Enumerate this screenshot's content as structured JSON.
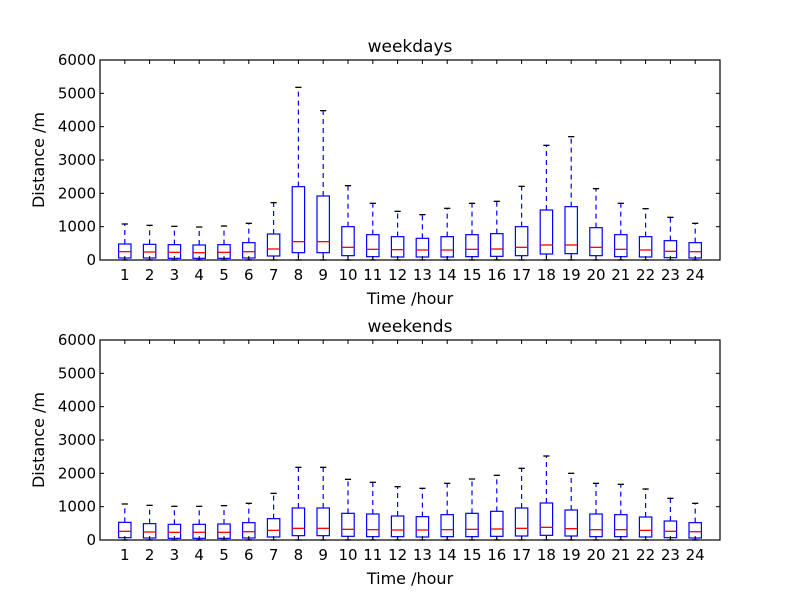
{
  "chart_data": [
    {
      "type": "box",
      "title": "weekdays",
      "xlabel": "Time /hour",
      "ylabel": "Distance /m",
      "ylim": [
        0,
        6000
      ],
      "yticks": [
        0,
        1000,
        2000,
        3000,
        4000,
        5000,
        6000
      ],
      "categories": [
        "1",
        "2",
        "3",
        "4",
        "5",
        "6",
        "7",
        "8",
        "9",
        "10",
        "11",
        "12",
        "13",
        "14",
        "15",
        "16",
        "17",
        "18",
        "19",
        "20",
        "21",
        "22",
        "23",
        "24"
      ],
      "boxes": [
        {
          "whislo": 0,
          "q1": 60,
          "med": 250,
          "q3": 480,
          "whishi": 1080
        },
        {
          "whislo": 0,
          "q1": 60,
          "med": 240,
          "q3": 470,
          "whishi": 1040
        },
        {
          "whislo": 0,
          "q1": 50,
          "med": 230,
          "q3": 460,
          "whishi": 1010
        },
        {
          "whislo": 0,
          "q1": 50,
          "med": 220,
          "q3": 450,
          "whishi": 990
        },
        {
          "whislo": 0,
          "q1": 50,
          "med": 230,
          "q3": 460,
          "whishi": 1020
        },
        {
          "whislo": 0,
          "q1": 60,
          "med": 250,
          "q3": 520,
          "whishi": 1100
        },
        {
          "whislo": 0,
          "q1": 120,
          "med": 330,
          "q3": 780,
          "whishi": 1720
        },
        {
          "whislo": 0,
          "q1": 220,
          "med": 550,
          "q3": 2200,
          "whishi": 5180
        },
        {
          "whislo": 0,
          "q1": 220,
          "med": 550,
          "q3": 1920,
          "whishi": 4480
        },
        {
          "whislo": 0,
          "q1": 130,
          "med": 380,
          "q3": 1000,
          "whishi": 2230
        },
        {
          "whislo": 0,
          "q1": 100,
          "med": 320,
          "q3": 760,
          "whishi": 1700
        },
        {
          "whislo": 0,
          "q1": 90,
          "med": 310,
          "q3": 700,
          "whishi": 1460
        },
        {
          "whislo": 0,
          "q1": 90,
          "med": 300,
          "q3": 650,
          "whishi": 1360
        },
        {
          "whislo": 0,
          "q1": 90,
          "med": 300,
          "q3": 700,
          "whishi": 1550
        },
        {
          "whislo": 0,
          "q1": 100,
          "med": 320,
          "q3": 760,
          "whishi": 1700
        },
        {
          "whislo": 0,
          "q1": 110,
          "med": 330,
          "q3": 790,
          "whishi": 1760
        },
        {
          "whislo": 0,
          "q1": 130,
          "med": 380,
          "q3": 1000,
          "whishi": 2210
        },
        {
          "whislo": 0,
          "q1": 180,
          "med": 450,
          "q3": 1500,
          "whishi": 3440
        },
        {
          "whislo": 0,
          "q1": 190,
          "med": 450,
          "q3": 1600,
          "whishi": 3700
        },
        {
          "whislo": 0,
          "q1": 130,
          "med": 380,
          "q3": 970,
          "whishi": 2140
        },
        {
          "whislo": 0,
          "q1": 100,
          "med": 320,
          "q3": 760,
          "whishi": 1700
        },
        {
          "whislo": 0,
          "q1": 90,
          "med": 300,
          "q3": 700,
          "whishi": 1540
        },
        {
          "whislo": 0,
          "q1": 70,
          "med": 260,
          "q3": 580,
          "whishi": 1280
        },
        {
          "whislo": 0,
          "q1": 60,
          "med": 250,
          "q3": 520,
          "whishi": 1100
        }
      ]
    },
    {
      "type": "box",
      "title": "weekends",
      "xlabel": "Time /hour",
      "ylabel": "Distance /m",
      "ylim": [
        0,
        6000
      ],
      "yticks": [
        0,
        1000,
        2000,
        3000,
        4000,
        5000,
        6000
      ],
      "categories": [
        "1",
        "2",
        "3",
        "4",
        "5",
        "6",
        "7",
        "8",
        "9",
        "10",
        "11",
        "12",
        "13",
        "14",
        "15",
        "16",
        "17",
        "18",
        "19",
        "20",
        "21",
        "22",
        "23",
        "24"
      ],
      "boxes": [
        {
          "whislo": 0,
          "q1": 70,
          "med": 260,
          "q3": 530,
          "whishi": 1080
        },
        {
          "whislo": 0,
          "q1": 60,
          "med": 240,
          "q3": 490,
          "whishi": 1040
        },
        {
          "whislo": 0,
          "q1": 50,
          "med": 230,
          "q3": 470,
          "whishi": 1010
        },
        {
          "whislo": 0,
          "q1": 50,
          "med": 230,
          "q3": 470,
          "whishi": 1010
        },
        {
          "whislo": 0,
          "q1": 50,
          "med": 230,
          "q3": 480,
          "whishi": 1030
        },
        {
          "whislo": 0,
          "q1": 60,
          "med": 250,
          "q3": 520,
          "whishi": 1100
        },
        {
          "whislo": 0,
          "q1": 90,
          "med": 290,
          "q3": 640,
          "whishi": 1400
        },
        {
          "whislo": 0,
          "q1": 130,
          "med": 350,
          "q3": 960,
          "whishi": 2180
        },
        {
          "whislo": 0,
          "q1": 130,
          "med": 350,
          "q3": 960,
          "whishi": 2180
        },
        {
          "whislo": 0,
          "q1": 110,
          "med": 320,
          "q3": 800,
          "whishi": 1820
        },
        {
          "whislo": 0,
          "q1": 100,
          "med": 310,
          "q3": 780,
          "whishi": 1730
        },
        {
          "whislo": 0,
          "q1": 100,
          "med": 300,
          "q3": 720,
          "whishi": 1600
        },
        {
          "whislo": 0,
          "q1": 90,
          "med": 300,
          "q3": 700,
          "whishi": 1550
        },
        {
          "whislo": 0,
          "q1": 100,
          "med": 310,
          "q3": 760,
          "whishi": 1700
        },
        {
          "whislo": 0,
          "q1": 100,
          "med": 320,
          "q3": 800,
          "whishi": 1830
        },
        {
          "whislo": 0,
          "q1": 110,
          "med": 330,
          "q3": 860,
          "whishi": 1940
        },
        {
          "whislo": 0,
          "q1": 120,
          "med": 350,
          "q3": 960,
          "whishi": 2150
        },
        {
          "whislo": 0,
          "q1": 140,
          "med": 380,
          "q3": 1110,
          "whishi": 2520
        },
        {
          "whislo": 0,
          "q1": 120,
          "med": 340,
          "q3": 900,
          "whishi": 2000
        },
        {
          "whislo": 0,
          "q1": 100,
          "med": 310,
          "q3": 780,
          "whishi": 1700
        },
        {
          "whislo": 0,
          "q1": 100,
          "med": 310,
          "q3": 760,
          "whishi": 1670
        },
        {
          "whislo": 0,
          "q1": 90,
          "med": 290,
          "q3": 690,
          "whishi": 1530
        },
        {
          "whislo": 0,
          "q1": 70,
          "med": 260,
          "q3": 570,
          "whishi": 1250
        },
        {
          "whislo": 0,
          "q1": 60,
          "med": 250,
          "q3": 520,
          "whishi": 1100
        }
      ]
    }
  ],
  "colors": {
    "box": "#0000ff",
    "median": "#ff0000",
    "cap": "#000000",
    "axes": "#000000"
  }
}
